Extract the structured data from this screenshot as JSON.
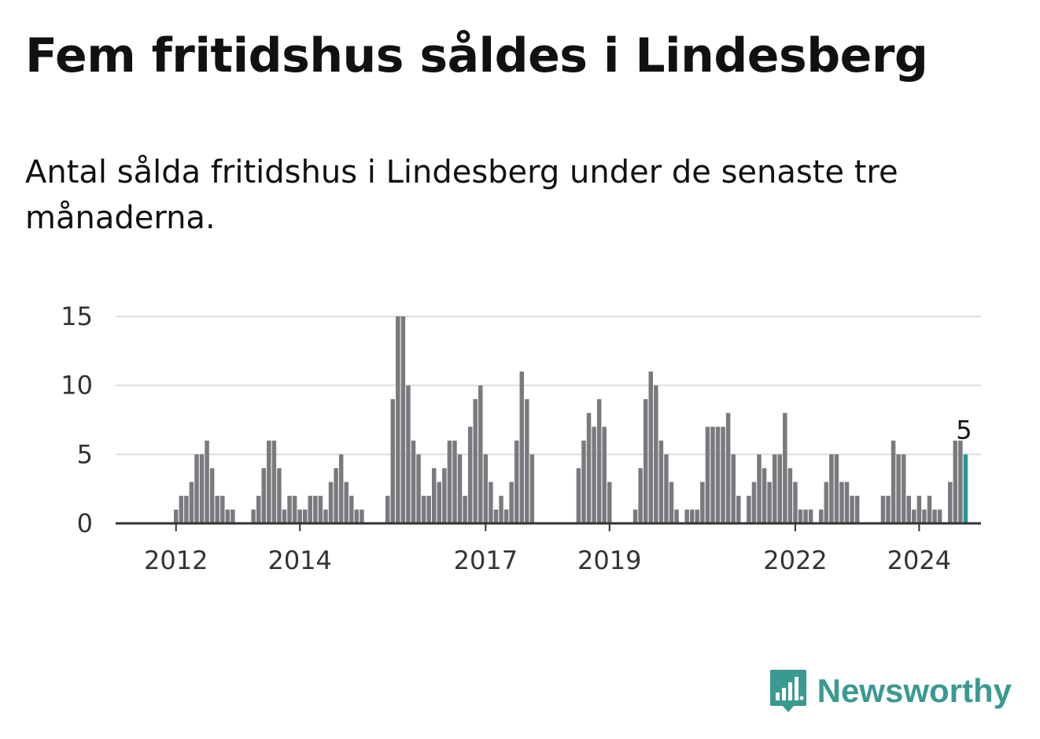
{
  "title": "Fem fritidshus såldes i Lindesberg",
  "subtitle": "Antal sålda fritidshus i Lindesberg under de senaste tre månaderna.",
  "brand": {
    "name": "Newsworthy",
    "icon": "newsworthy-logo-icon"
  },
  "colors": {
    "bar": "#7a797e",
    "highlight": "#1e9a92",
    "grid": "#dddddd",
    "axis": "#333333",
    "brand": "#3a9a92"
  },
  "chart_data": {
    "type": "bar",
    "title": "Fem fritidshus såldes i Lindesberg",
    "subtitle": "Antal sålda fritidshus i Lindesberg under de senaste tre månaderna.",
    "xlabel": "",
    "ylabel": "",
    "ylim": [
      0,
      15
    ],
    "y_ticks": [
      0,
      5,
      10,
      15
    ],
    "x_ticks": [
      "2012",
      "2014",
      "2017",
      "2019",
      "2022",
      "2024"
    ],
    "grid": true,
    "legend": "none",
    "x_start": "2011-09",
    "values": [
      0,
      0,
      0,
      0,
      1,
      2,
      2,
      3,
      5,
      5,
      6,
      4,
      2,
      2,
      1,
      1,
      0,
      0,
      0,
      1,
      2,
      4,
      6,
      6,
      4,
      1,
      2,
      2,
      1,
      1,
      2,
      2,
      2,
      1,
      3,
      4,
      5,
      3,
      2,
      1,
      1,
      0,
      0,
      0,
      0,
      2,
      9,
      15,
      15,
      10,
      6,
      5,
      2,
      2,
      4,
      3,
      4,
      6,
      6,
      5,
      2,
      7,
      9,
      10,
      5,
      3,
      1,
      2,
      1,
      3,
      6,
      11,
      9,
      5,
      0,
      0,
      0,
      0,
      0,
      0,
      0,
      0,
      4,
      6,
      8,
      7,
      9,
      7,
      3,
      0,
      0,
      0,
      0,
      1,
      4,
      9,
      11,
      10,
      6,
      5,
      3,
      1,
      0,
      1,
      1,
      1,
      3,
      7,
      7,
      7,
      7,
      8,
      5,
      2,
      0,
      2,
      3,
      5,
      4,
      3,
      5,
      5,
      8,
      4,
      3,
      1,
      1,
      1,
      0,
      1,
      3,
      5,
      5,
      3,
      3,
      2,
      2,
      0,
      0,
      0,
      0,
      2,
      2,
      6,
      5,
      5,
      2,
      1,
      2,
      1,
      2,
      1,
      1,
      0,
      3,
      6,
      6,
      5
    ],
    "highlight": {
      "index": "last",
      "label": "5"
    }
  }
}
